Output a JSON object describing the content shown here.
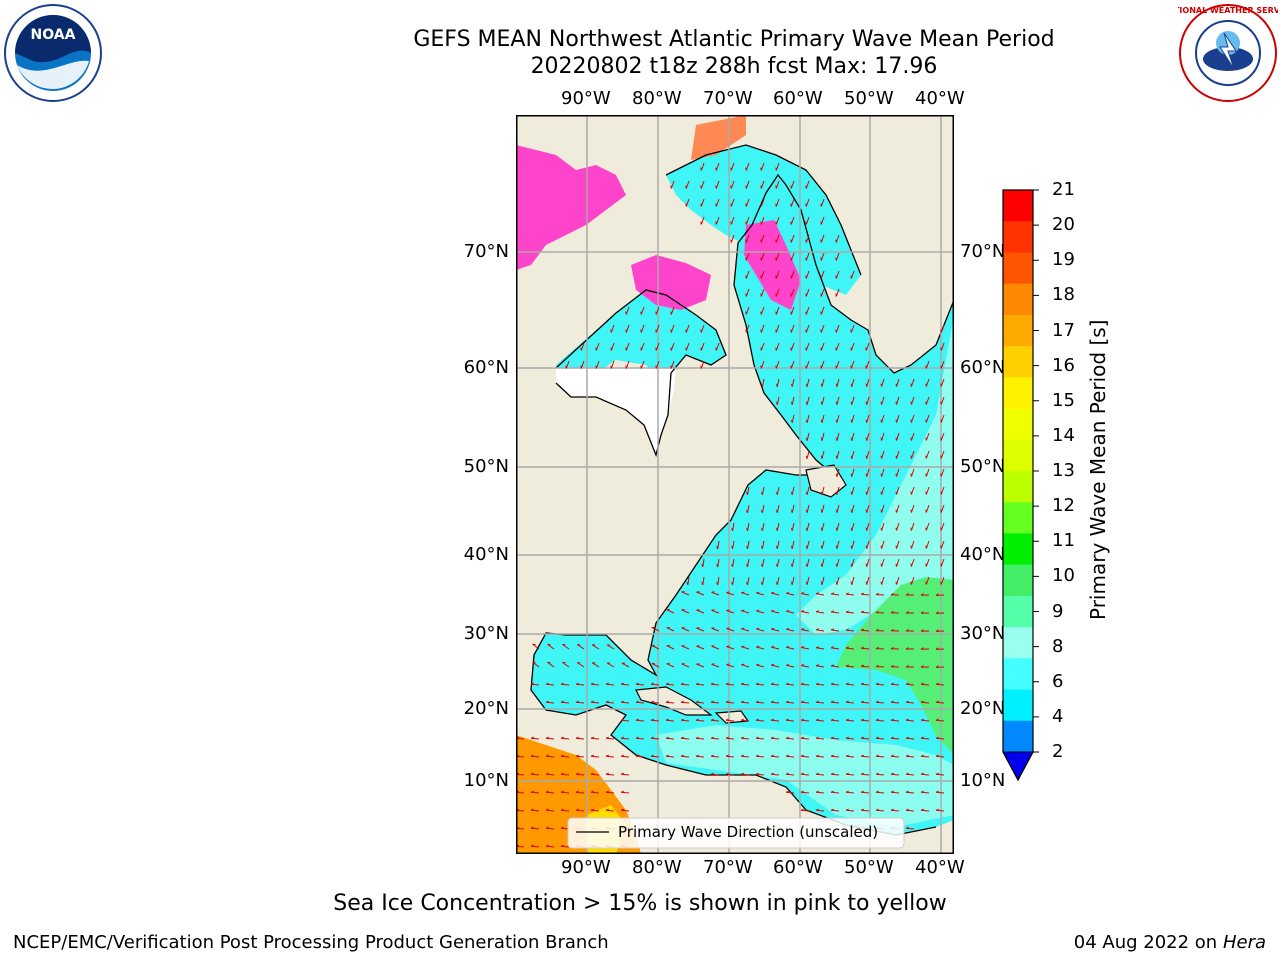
{
  "title": "GEFS MEAN Northwest Atlantic Primary Wave Mean Period",
  "subtitle": "20220802 t18z 288h fcst   Max: 17.96",
  "lon_ticks": [
    "90°W",
    "80°W",
    "70°W",
    "60°W",
    "50°W",
    "40°W"
  ],
  "lat_ticks": [
    "70°N",
    "60°N",
    "50°N",
    "40°N",
    "30°N",
    "20°N",
    "10°N"
  ],
  "legend_label": "Primary Wave Direction (unscaled)",
  "colorbar": {
    "label": "Primary Wave Mean Period [s]",
    "ticks": [
      "21",
      "20",
      "19",
      "18",
      "17",
      "16",
      "15",
      "14",
      "13",
      "12",
      "11",
      "10",
      "9",
      "8",
      "6",
      "4",
      "2"
    ],
    "colors": [
      "#ff0000",
      "#ff3300",
      "#ff5500",
      "#ff8800",
      "#ffaa00",
      "#ffd000",
      "#fff200",
      "#f0ff00",
      "#ddff00",
      "#bbff00",
      "#66ff22",
      "#00ee00",
      "#44ee66",
      "#55ffaa",
      "#99ffee",
      "#44ffff",
      "#00f0ff",
      "#0088ff"
    ],
    "extend_color": "#0000ee"
  },
  "colors": {
    "land": "#efecdc",
    "ocean_cyan": "#3ff5f5",
    "ocean_light": "#99ffee",
    "ocean_green": "#55ee77",
    "orange": "#ff9900",
    "yellow": "#ffee00",
    "ice_pink": "#ff44cc",
    "arrow": "#dd0000",
    "grid": "#aaaaaa"
  },
  "footer": {
    "note": "Sea Ice Concentration > 15% is shown in pink to yellow",
    "credit": "NCEP/EMC/Verification Post Processing Product Generation Branch",
    "date": "04 Aug 2022 on",
    "host": "Hera"
  },
  "logos": {
    "noaa": "NOAA",
    "nws": "NATIONAL WEATHER SERVICE"
  }
}
